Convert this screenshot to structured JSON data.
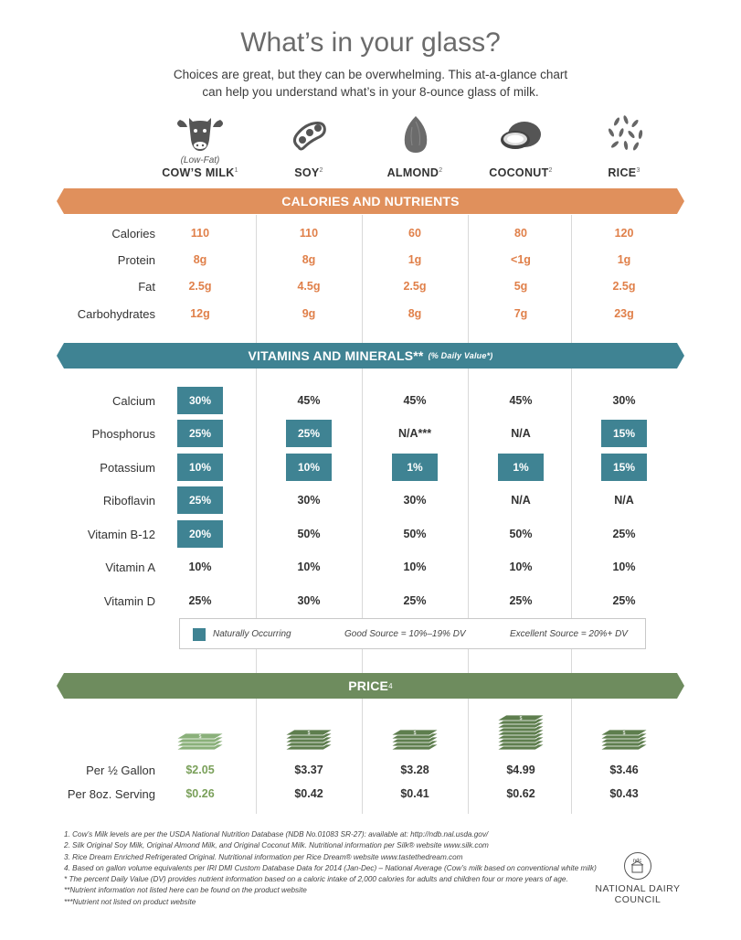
{
  "title": "What’s in your glass?",
  "subtitle_line1": "Choices are great, but they can be overwhelming. This at-a-glance chart",
  "subtitle_line2": "can help you understand what’s in your 8-ounce glass of milk.",
  "columns": [
    {
      "sub": "(Low-Fat)",
      "name": "COW’S MILK",
      "sup": "1",
      "icon": "cow-icon"
    },
    {
      "sub": "",
      "name": "SOY",
      "sup": "2",
      "icon": "soybean-icon"
    },
    {
      "sub": "",
      "name": "ALMOND",
      "sup": "2",
      "icon": "almond-icon"
    },
    {
      "sub": "",
      "name": "COCONUT",
      "sup": "2",
      "icon": "coconut-icon"
    },
    {
      "sub": "",
      "name": "RICE",
      "sup": "3",
      "icon": "rice-icon"
    }
  ],
  "calories_band": "CALORIES AND NUTRIENTS",
  "calories_rows": [
    {
      "label": "Calories",
      "values": [
        "110",
        "110",
        "60",
        "80",
        "120"
      ]
    },
    {
      "label": "Protein",
      "values": [
        "8g",
        "8g",
        "1g",
        "<1g",
        "1g"
      ]
    },
    {
      "label": "Fat",
      "values": [
        "2.5g",
        "4.5g",
        "2.5g",
        "5g",
        "2.5g"
      ]
    },
    {
      "label": "Carbohydrates",
      "values": [
        "12g",
        "9g",
        "8g",
        "7g",
        "23g"
      ]
    }
  ],
  "vitamins_band": "VITAMINS AND MINERALS**",
  "vitamins_band_note": "(% Daily Value*)",
  "vitamin_rows": [
    {
      "label": "Calcium",
      "values": [
        "30%",
        "45%",
        "45%",
        "45%",
        "30%"
      ],
      "natural": [
        true,
        false,
        false,
        false,
        false
      ]
    },
    {
      "label": "Phosphorus",
      "values": [
        "25%",
        "25%",
        "N/A***",
        "N/A",
        "15%"
      ],
      "natural": [
        true,
        true,
        false,
        false,
        true
      ]
    },
    {
      "label": "Potassium",
      "values": [
        "10%",
        "10%",
        "1%",
        "1%",
        "15%"
      ],
      "natural": [
        true,
        true,
        true,
        true,
        true
      ]
    },
    {
      "label": "Riboflavin",
      "values": [
        "25%",
        "30%",
        "30%",
        "N/A",
        "N/A"
      ],
      "natural": [
        true,
        false,
        false,
        false,
        false
      ]
    },
    {
      "label": "Vitamin B-12",
      "values": [
        "20%",
        "50%",
        "50%",
        "50%",
        "25%"
      ],
      "natural": [
        true,
        false,
        false,
        false,
        false
      ]
    },
    {
      "label": "Vitamin A",
      "values": [
        "10%",
        "10%",
        "10%",
        "10%",
        "10%"
      ],
      "natural": [
        false,
        false,
        false,
        false,
        false
      ]
    },
    {
      "label": "Vitamin D",
      "values": [
        "25%",
        "30%",
        "25%",
        "25%",
        "25%"
      ],
      "natural": [
        false,
        false,
        false,
        false,
        false
      ]
    }
  ],
  "legend": {
    "natural": "Naturally Occurring",
    "good": "Good Source = 10%–19% DV",
    "excellent": "Excellent Source = 20%+ DV"
  },
  "price_band": "PRICE",
  "price_band_sup": "4",
  "price_rows": [
    {
      "label": "Per ½ Gallon",
      "values": [
        "$2.05",
        "$3.37",
        "$3.28",
        "$4.99",
        "$3.46"
      ]
    },
    {
      "label": "Per 8oz. Serving",
      "values": [
        "$0.26",
        "$0.42",
        "$0.41",
        "$0.62",
        "$0.43"
      ]
    }
  ],
  "money_stacks": [
    4,
    5,
    5,
    9,
    5
  ],
  "footnotes": [
    "1. Cow’s Milk levels are per the USDA National Nutrition Database (NDB No.01083 SR-27): available at: http://ndb.nal.usda.gov/",
    "2. Silk Original Soy Milk, Original Almond Milk, and Original Coconut Milk. Nutritional information per Silk® website www.silk.com",
    "3. Rice Dream Enriched Refrigerated Original. Nutritional information per Rice Dream® website www.tastethedream.com",
    "4. Based on gallon volume equivalents per IRI DMI Custom Database Data for 2014 (Jan-Dec) – National Average (Cow’s milk based on conventional white milk)",
    "* The percent Daily Value (DV) provides nutrient information based on a caloric intake of 2,000 calories for adults and children four or more years of age.",
    "**Nutrient information not listed here can be found on the product website",
    "***Nutrient not listed on product website"
  ],
  "logo": {
    "mark": "ndc",
    "line1": "NATIONAL DAIRY",
    "line2": "COUNCIL"
  },
  "colors": {
    "orange": "#e0905c",
    "teal": "#3f8393",
    "green": "#6e8c5e",
    "money_green": "#8ab07a"
  }
}
